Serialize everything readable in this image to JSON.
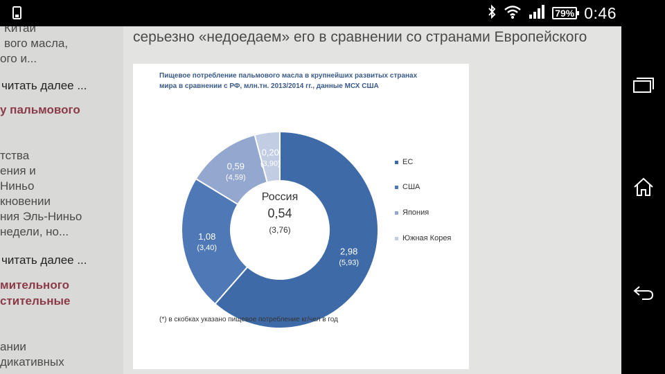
{
  "status_bar": {
    "time": "0:46",
    "battery": "79%",
    "icons": [
      "phone-icon",
      "bluetooth-icon",
      "wifi-icon",
      "signal-icon",
      "battery-icon"
    ]
  },
  "left_panel": {
    "item1_lines": [
      "Китай",
      "вого масла,",
      "ого и..."
    ],
    "read_more_1": "читать далее ...",
    "title2": "у пальмового",
    "item2_lines": [
      "тства",
      "ения и",
      "Ниньо",
      "кновении",
      "ния Эль-Ниньо",
      "недели, но..."
    ],
    "read_more_2": "читать далее ...",
    "title3_lines": [
      "мительного",
      "стительные"
    ],
    "item3_lines": [
      "ании",
      "дикативных"
    ]
  },
  "main": {
    "line_top": "",
    "line": "серьезно «недоедаем» его в сравнении со странами Европейского"
  },
  "chart_data": {
    "type": "pie",
    "title_lines": [
      "Пищевое потребление пальмового масла в крупнейших развитых странах",
      "мира в сравнении с РФ, млн.тн. 2013/2014 гг., данные МСХ США"
    ],
    "categories": [
      "ЕС",
      "США",
      "Япония",
      "Южная Корея"
    ],
    "values": [
      2.98,
      1.08,
      0.59,
      0.2
    ],
    "value_labels": [
      "2,98",
      "1,08",
      "0,59",
      "0,20"
    ],
    "per_capita_labels": [
      "(5,93)",
      "(3,40)",
      "(4,59)",
      "(3,90)"
    ],
    "colors": [
      "#3f6aa8",
      "#4f78b6",
      "#93a7cf",
      "#c2cde3"
    ],
    "center_title": "Россия",
    "center_value": "0,54",
    "center_per_capita": "(3,76)",
    "footnote": "(*) в скобках указано пищевое потребление кг/чел в год",
    "legend_position": "right"
  }
}
